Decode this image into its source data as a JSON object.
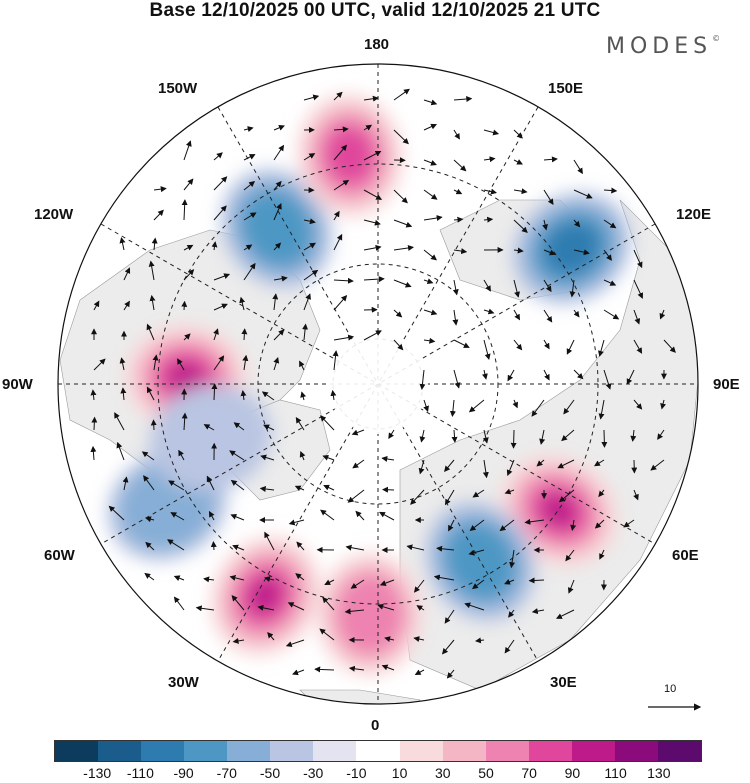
{
  "title": "Base 12/10/2025 00 UTC, valid 12/10/2025 21 UTC",
  "logo": {
    "text": "MODES",
    "mark": "©"
  },
  "longitude_labels": {
    "top": "180",
    "bottom": "0",
    "left": "90W",
    "right": "90E",
    "upper_left_1": "150W",
    "upper_left_2": "120W",
    "upper_right_1": "150E",
    "upper_right_2": "120E",
    "lower_left_1": "60W",
    "lower_left_2": "30W",
    "lower_right_1": "60E",
    "lower_right_2": "30E"
  },
  "reference_vector": {
    "label": "10"
  },
  "colorbar": {
    "colors": [
      "#0d3b5e",
      "#1a5c8c",
      "#2e7bb0",
      "#4d97c4",
      "#86aed6",
      "#b9c5e2",
      "#e4e4f1",
      "#ffffff",
      "#f8dcdd",
      "#f4b6c4",
      "#ee82b0",
      "#e0479c",
      "#be1a8a",
      "#8b0a7c",
      "#5c0a6e"
    ],
    "labels": [
      "-130",
      "-110",
      "-90",
      "-70",
      "-50",
      "-30",
      "-10",
      "10",
      "30",
      "50",
      "70",
      "90",
      "110",
      "130"
    ]
  },
  "anomaly_centers": [
    {
      "label": "positive",
      "value": 110,
      "dir_deg": -88,
      "dist": 0.6
    },
    {
      "label": "negative",
      "value": -80,
      "dir_deg": -33,
      "dist": 0.58
    },
    {
      "label": "positive",
      "value": 90,
      "dir_deg": -7,
      "dist": 0.72
    },
    {
      "label": "negative",
      "value": -90,
      "dir_deg": 55,
      "dist": 0.74
    },
    {
      "label": "positive",
      "value": 110,
      "dir_deg": 125,
      "dist": 0.69
    },
    {
      "label": "negative",
      "value": -80,
      "dir_deg": 150,
      "dist": 0.64
    },
    {
      "label": "positive",
      "value": 110,
      "dir_deg": 208,
      "dist": 0.75
    },
    {
      "label": "negative",
      "value": -50,
      "dir_deg": 240,
      "dist": 0.76
    },
    {
      "label": "negative",
      "value": -40,
      "dir_deg": 252,
      "dist": 0.55
    },
    {
      "label": "positive",
      "value": 80,
      "dir_deg": 182,
      "dist": 0.72
    }
  ]
}
